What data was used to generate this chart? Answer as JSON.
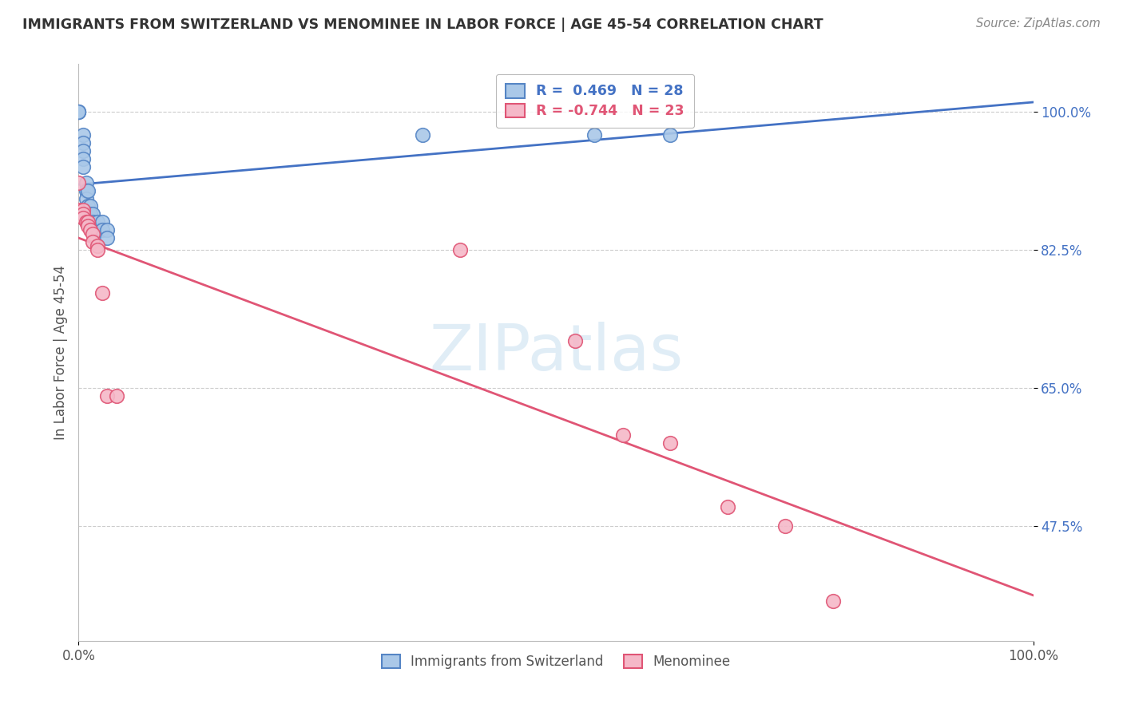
{
  "title": "IMMIGRANTS FROM SWITZERLAND VS MENOMINEE IN LABOR FORCE | AGE 45-54 CORRELATION CHART",
  "source": "Source: ZipAtlas.com",
  "ylabel": "In Labor Force | Age 45-54",
  "xlim": [
    0.0,
    1.0
  ],
  "ylim": [
    0.33,
    1.06
  ],
  "yticks": [
    0.475,
    0.65,
    0.825,
    1.0
  ],
  "ytick_labels": [
    "47.5%",
    "65.0%",
    "82.5%",
    "100.0%"
  ],
  "legend_r1": "R =  0.469   N = 28",
  "legend_r2": "R = -0.744   N = 23",
  "color_blue_fill": "#aac8e8",
  "color_blue_edge": "#5585c5",
  "color_pink_fill": "#f5b8c8",
  "color_pink_edge": "#e05575",
  "color_blue_line": "#4472c4",
  "color_pink_line": "#e05575",
  "swiss_x": [
    0.0,
    0.0,
    0.0,
    0.0,
    0.005,
    0.005,
    0.005,
    0.005,
    0.005,
    0.008,
    0.008,
    0.008,
    0.01,
    0.01,
    0.01,
    0.012,
    0.012,
    0.015,
    0.015,
    0.02,
    0.02,
    0.025,
    0.025,
    0.03,
    0.03,
    0.36,
    0.54,
    0.62
  ],
  "swiss_y": [
    1.0,
    1.0,
    1.0,
    1.0,
    0.97,
    0.96,
    0.95,
    0.94,
    0.93,
    0.91,
    0.9,
    0.89,
    0.9,
    0.88,
    0.87,
    0.88,
    0.87,
    0.87,
    0.86,
    0.86,
    0.85,
    0.86,
    0.85,
    0.85,
    0.84,
    0.97,
    0.97,
    0.97
  ],
  "menominee_x": [
    0.0,
    0.0,
    0.005,
    0.005,
    0.005,
    0.008,
    0.01,
    0.01,
    0.012,
    0.015,
    0.015,
    0.02,
    0.02,
    0.025,
    0.03,
    0.04,
    0.4,
    0.52,
    0.57,
    0.62,
    0.68,
    0.74,
    0.79
  ],
  "menominee_y": [
    0.91,
    0.875,
    0.875,
    0.87,
    0.865,
    0.86,
    0.86,
    0.855,
    0.85,
    0.845,
    0.835,
    0.83,
    0.825,
    0.77,
    0.64,
    0.64,
    0.825,
    0.71,
    0.59,
    0.58,
    0.5,
    0.475,
    0.38
  ]
}
